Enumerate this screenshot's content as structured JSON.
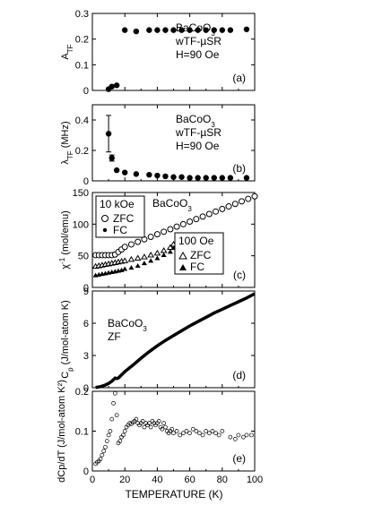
{
  "figure": {
    "xlabel": "TEMPERATURE (K)",
    "xticks": [
      "0",
      "20",
      "40",
      "60",
      "80",
      "100"
    ]
  },
  "chart_data": [
    {
      "type": "scatter",
      "panel": "(a)",
      "ylabel": "A_TF",
      "ylim": [
        0,
        0.3
      ],
      "yticks": [
        "0",
        "0.1",
        "0.2",
        "0.3"
      ],
      "annotation": [
        "BaCoO3",
        "wTF-µSR",
        "H=90 Oe"
      ],
      "series": [
        {
          "x": [
            10,
            12,
            15,
            20,
            27,
            35,
            40,
            45,
            50,
            55,
            60,
            65,
            70,
            75,
            80,
            85,
            95
          ],
          "y": [
            0.005,
            0.015,
            0.02,
            0.235,
            0.23,
            0.235,
            0.235,
            0.235,
            0.235,
            0.235,
            0.235,
            0.235,
            0.235,
            0.235,
            0.235,
            0.235,
            0.238
          ]
        }
      ]
    },
    {
      "type": "scatter",
      "panel": "(b)",
      "ylabel": "λ_TF (MHz)",
      "ylim": [
        0,
        0.5
      ],
      "yticks": [
        "0",
        "0.2",
        "0.4"
      ],
      "annotation": [
        "BaCoO3",
        "wTF-µSR",
        "H=90 Oe"
      ],
      "series": [
        {
          "x": [
            10,
            12,
            15,
            20,
            27,
            35,
            40,
            45,
            50,
            55,
            60,
            65,
            70,
            75,
            80,
            85,
            95
          ],
          "y": [
            0.31,
            0.15,
            0.07,
            0.055,
            0.045,
            0.04,
            0.035,
            0.03,
            0.025,
            0.025,
            0.02,
            0.02,
            0.02,
            0.02,
            0.02,
            0.02,
            0.02
          ],
          "yerr": [
            0.12,
            0.02,
            0,
            0,
            0,
            0,
            0,
            0,
            0,
            0,
            0,
            0,
            0,
            0,
            0,
            0,
            0
          ]
        }
      ]
    },
    {
      "type": "scatter",
      "panel": "(c)",
      "ylabel": "χ⁻¹ (mol/emu)",
      "ylim": [
        0,
        150
      ],
      "yticks": [
        "0",
        "50",
        "100",
        "150"
      ],
      "annotation": [
        "BaCoO3"
      ],
      "legend_10k": [
        "10 kOe",
        "ZFC",
        "FC"
      ],
      "legend_100": [
        "100 Oe",
        "ZFC",
        "FC"
      ],
      "series": [
        {
          "name": "10 kOe ZFC",
          "x": [
            2,
            4,
            6,
            8,
            10,
            12,
            14,
            16,
            18,
            20,
            24,
            28,
            32,
            36,
            40,
            44,
            48,
            52,
            56,
            60,
            64,
            68,
            72,
            76,
            80,
            84,
            88,
            92,
            96,
            100
          ],
          "y": [
            51,
            51,
            51,
            51,
            51,
            51,
            52,
            56,
            60,
            64,
            68,
            72,
            76,
            80,
            84,
            88,
            92,
            96,
            100,
            104,
            108,
            112,
            116,
            120,
            124,
            128,
            132,
            136,
            140,
            144
          ]
        },
        {
          "name": "100 Oe ZFC",
          "x": [
            2,
            4,
            6,
            8,
            10,
            12,
            14,
            16,
            18,
            20,
            24,
            28,
            32,
            36,
            40,
            44,
            48,
            50
          ],
          "y": [
            33,
            34,
            35,
            36,
            37,
            38,
            39,
            40,
            41,
            42,
            44,
            46,
            48,
            51,
            54,
            58,
            63,
            68
          ]
        },
        {
          "name": "100 Oe FC",
          "x": [
            2,
            4,
            6,
            8,
            10,
            12,
            14,
            16,
            18,
            20,
            24,
            28,
            32,
            36,
            40,
            44,
            48,
            50
          ],
          "y": [
            19,
            20,
            21,
            22,
            23,
            24,
            25,
            26,
            27,
            29,
            31,
            34,
            38,
            42,
            46,
            51,
            56,
            62
          ]
        }
      ]
    },
    {
      "type": "line",
      "panel": "(d)",
      "ylabel": "C_p (J/mol-atom K)",
      "ylim": [
        0,
        9
      ],
      "yticks": [
        "0",
        "3",
        "6",
        "9"
      ],
      "annotation": [
        "BaCoO3",
        "ZF"
      ],
      "series": [
        {
          "x": [
            2,
            5,
            8,
            10,
            12,
            14,
            15,
            16,
            18,
            20,
            25,
            30,
            35,
            40,
            45,
            50,
            55,
            60,
            65,
            70,
            75,
            80,
            85,
            90,
            95,
            100
          ],
          "y": [
            0.02,
            0.1,
            0.25,
            0.4,
            0.6,
            0.9,
            0.85,
            0.9,
            1.2,
            1.5,
            2.1,
            2.75,
            3.35,
            3.9,
            4.4,
            4.85,
            5.3,
            5.75,
            6.15,
            6.55,
            6.95,
            7.3,
            7.65,
            8.0,
            8.35,
            8.75
          ]
        }
      ]
    },
    {
      "type": "scatter",
      "panel": "(e)",
      "ylabel": "dCp/dT (J/mol-atom K²)",
      "ylim": [
        0,
        0.2
      ],
      "yticks": [
        "0",
        "0.1",
        "0.2"
      ],
      "series": [
        {
          "x": [
            2,
            3,
            4,
            5,
            6,
            7,
            8,
            9,
            10,
            11,
            12,
            13,
            14,
            15,
            16,
            17,
            18,
            19,
            20,
            21,
            22,
            23,
            24,
            25,
            26,
            27,
            28,
            29,
            30,
            31,
            32,
            33,
            34,
            35,
            36,
            37,
            38,
            39,
            40,
            41,
            42,
            43,
            44,
            45,
            46,
            47,
            48,
            49,
            50,
            52,
            54,
            56,
            58,
            60,
            62,
            64,
            66,
            68,
            70,
            72,
            74,
            76,
            78,
            80,
            85,
            88,
            90,
            93,
            95,
            98
          ],
          "y": [
            0.018,
            0.022,
            0.025,
            0.03,
            0.04,
            0.05,
            0.06,
            0.075,
            0.09,
            0.1,
            0.13,
            0.17,
            0.195,
            0.14,
            0.07,
            0.075,
            0.085,
            0.09,
            0.1,
            0.11,
            0.115,
            0.12,
            0.118,
            0.122,
            0.125,
            0.13,
            0.12,
            0.115,
            0.12,
            0.125,
            0.11,
            0.12,
            0.115,
            0.12,
            0.11,
            0.125,
            0.12,
            0.115,
            0.12,
            0.125,
            0.11,
            0.105,
            0.12,
            0.11,
            0.1,
            0.095,
            0.1,
            0.105,
            0.095,
            0.1,
            0.09,
            0.095,
            0.1,
            0.095,
            0.105,
            0.1,
            0.095,
            0.09,
            0.1,
            0.095,
            0.1,
            0.095,
            0.09,
            0.1,
            0.085,
            0.08,
            0.09,
            0.085,
            0.09,
            0.09
          ]
        }
      ]
    }
  ]
}
